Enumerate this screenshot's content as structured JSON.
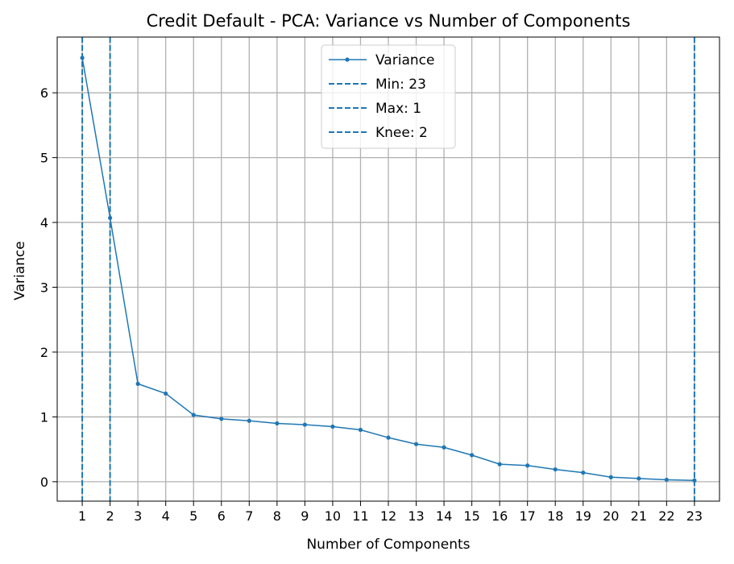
{
  "chart_data": {
    "type": "line",
    "title": "Credit Default - PCA: Variance vs Number of Components",
    "xlabel": "Number of Components",
    "ylabel": "Variance",
    "xlim": [
      0.1,
      23.9
    ],
    "ylim": [
      -0.3,
      6.86
    ],
    "grid": true,
    "legend_placement": "upper-center",
    "x_ticks": [
      1,
      2,
      3,
      4,
      5,
      6,
      7,
      8,
      9,
      10,
      11,
      12,
      13,
      14,
      15,
      16,
      17,
      18,
      19,
      20,
      21,
      22,
      23
    ],
    "y_ticks": [
      0,
      1,
      2,
      3,
      4,
      5,
      6
    ],
    "colors": {
      "series": "#1f77b4",
      "grid": "#b0b0b0"
    },
    "series": [
      {
        "name": "Variance",
        "x": [
          1,
          2,
          3,
          4,
          5,
          6,
          7,
          8,
          9,
          10,
          11,
          12,
          13,
          14,
          15,
          16,
          17,
          18,
          19,
          20,
          21,
          22,
          23
        ],
        "values": [
          6.54,
          4.07,
          1.51,
          1.36,
          1.03,
          0.97,
          0.94,
          0.9,
          0.88,
          0.85,
          0.8,
          0.68,
          0.58,
          0.53,
          0.41,
          0.27,
          0.25,
          0.19,
          0.14,
          0.07,
          0.05,
          0.03,
          0.02
        ]
      }
    ],
    "vlines": [
      {
        "label": "Min: 23",
        "x": 23
      },
      {
        "label": "Max: 1",
        "x": 1
      },
      {
        "label": "Knee: 2",
        "x": 2
      }
    ]
  }
}
